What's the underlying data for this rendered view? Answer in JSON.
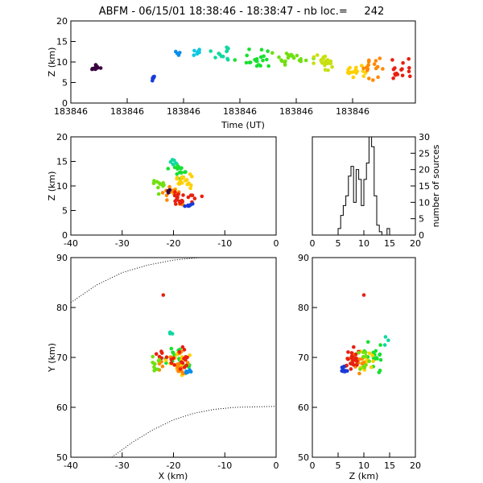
{
  "title": "ABFM - 06/15/01 18:38:46 - 18:38:47 - nb loc.=     242",
  "chart_data": [
    {
      "id": "time_height",
      "type": "scatter",
      "xlabel": "Time (UT)",
      "ylabel": "Z (km)",
      "x_tick_labels": [
        "183846",
        "183846",
        "183846",
        "183846",
        "183846",
        "183846"
      ],
      "ylim": [
        0,
        20
      ],
      "yticks": [
        0,
        5,
        10,
        15,
        20
      ],
      "x_unit": "fraction of time window (0-1)",
      "clusters": [
        {
          "x": 0.07,
          "y": 8.5,
          "color": "#3a0040",
          "n": 10,
          "sx": 0.02,
          "sy": 0.8
        },
        {
          "x": 0.24,
          "y": 6.0,
          "color": "#1a3ad8",
          "n": 8,
          "sx": 0.006,
          "sy": 0.5
        },
        {
          "x": 0.31,
          "y": 12.0,
          "color": "#0a8ee8",
          "n": 4,
          "sx": 0.01,
          "sy": 0.4
        },
        {
          "x": 0.37,
          "y": 12.5,
          "color": "#0fc8e0",
          "n": 8,
          "sx": 0.02,
          "sy": 0.8
        },
        {
          "x": 0.44,
          "y": 11.5,
          "color": "#10d8a0",
          "n": 12,
          "sx": 0.03,
          "sy": 2.0
        },
        {
          "x": 0.53,
          "y": 11.0,
          "color": "#18e030",
          "n": 20,
          "sx": 0.04,
          "sy": 1.6
        },
        {
          "x": 0.64,
          "y": 11.0,
          "color": "#70e010",
          "n": 20,
          "sx": 0.04,
          "sy": 1.5
        },
        {
          "x": 0.74,
          "y": 9.5,
          "color": "#c8e010",
          "n": 22,
          "sx": 0.03,
          "sy": 1.5
        },
        {
          "x": 0.82,
          "y": 8.0,
          "color": "#ffd000",
          "n": 18,
          "sx": 0.03,
          "sy": 1.2
        },
        {
          "x": 0.88,
          "y": 9.0,
          "color": "#ff8800",
          "n": 16,
          "sx": 0.03,
          "sy": 2.0
        },
        {
          "x": 0.95,
          "y": 8.5,
          "color": "#e82010",
          "n": 16,
          "sx": 0.025,
          "sy": 2.0
        }
      ]
    },
    {
      "id": "x_z",
      "type": "scatter",
      "xlim": [
        -40,
        0
      ],
      "xticks": [
        -40,
        -30,
        -20,
        -10,
        0
      ],
      "ylim": [
        0,
        20
      ],
      "yticks": [
        0,
        5,
        10,
        15,
        20
      ],
      "ylabel": "Z (km)",
      "clusters": [
        {
          "x": -19,
          "y": 13,
          "color": "#18e030",
          "n": 18,
          "sx": 1.5,
          "sy": 1.5
        },
        {
          "x": -18,
          "y": 11,
          "color": "#ffd000",
          "n": 18,
          "sx": 1.5,
          "sy": 1.5
        },
        {
          "x": -20,
          "y": 8.5,
          "color": "#ff8800",
          "n": 18,
          "sx": 2,
          "sy": 1.5
        },
        {
          "x": -18,
          "y": 7.5,
          "color": "#e82010",
          "n": 22,
          "sx": 2.5,
          "sy": 1.2
        },
        {
          "x": -23,
          "y": 10,
          "color": "#70e010",
          "n": 10,
          "sx": 1,
          "sy": 1.5
        },
        {
          "x": -17,
          "y": 6,
          "color": "#1a3ad8",
          "n": 8,
          "sx": 0.5,
          "sy": 0.4
        },
        {
          "x": -20,
          "y": 15,
          "color": "#10d8a0",
          "n": 5,
          "sx": 0.6,
          "sy": 0.8
        },
        {
          "x": -21,
          "y": 9,
          "color": "#3a0040",
          "n": 3,
          "sx": 0.3,
          "sy": 0.3
        }
      ]
    },
    {
      "id": "histogram",
      "type": "bar",
      "xlim": [
        0,
        20
      ],
      "xticks": [
        0,
        5,
        10,
        15,
        20
      ],
      "ylim": [
        0,
        30
      ],
      "yticks": [
        0,
        5,
        10,
        15,
        20,
        25,
        30
      ],
      "ylabel": "number of sources",
      "bin_width": 0.5,
      "bins_start": 5,
      "values": [
        2,
        6,
        9,
        12,
        18,
        21,
        10,
        20,
        17,
        9,
        17,
        22,
        30,
        27,
        12,
        3,
        1,
        0,
        0,
        2,
        0
      ]
    },
    {
      "id": "x_y",
      "type": "scatter",
      "xlim": [
        -40,
        0
      ],
      "xticks": [
        -40,
        -30,
        -20,
        -10,
        0
      ],
      "ylim": [
        50,
        90
      ],
      "yticks": [
        50,
        60,
        70,
        80,
        90
      ],
      "xlabel": "X (km)",
      "ylabel": "Y (km)",
      "clusters": [
        {
          "x": -19,
          "y": 70,
          "color": "#18e030",
          "n": 18,
          "sx": 2,
          "sy": 2
        },
        {
          "x": -19,
          "y": 69,
          "color": "#ffd000",
          "n": 18,
          "sx": 2,
          "sy": 2
        },
        {
          "x": -20,
          "y": 68.5,
          "color": "#ff8800",
          "n": 18,
          "sx": 2.5,
          "sy": 2
        },
        {
          "x": -19,
          "y": 69.5,
          "color": "#e82010",
          "n": 22,
          "sx": 3,
          "sy": 2
        },
        {
          "x": -23.5,
          "y": 69,
          "color": "#70e010",
          "n": 10,
          "sx": 0.8,
          "sy": 1.5
        },
        {
          "x": -17,
          "y": 67,
          "color": "#0a8ee8",
          "n": 5,
          "sx": 0.5,
          "sy": 0.5
        },
        {
          "x": -20.5,
          "y": 75,
          "color": "#10d8a0",
          "n": 3,
          "sx": 0.3,
          "sy": 1.5
        },
        {
          "x": -22,
          "y": 82.5,
          "color": "#e82010",
          "n": 1,
          "sx": 0,
          "sy": 0
        }
      ],
      "dotted_curves": [
        [
          [
            -40,
            81
          ],
          [
            -35,
            84.5
          ],
          [
            -30,
            87
          ],
          [
            -25,
            88.5
          ],
          [
            -20,
            89.5
          ],
          [
            -15,
            90
          ],
          [
            -10,
            90
          ]
        ],
        [
          [
            -32,
            50
          ],
          [
            -28,
            53
          ],
          [
            -24,
            55.5
          ],
          [
            -20,
            57.5
          ],
          [
            -16,
            58.8
          ],
          [
            -12,
            59.6
          ],
          [
            -8,
            60
          ],
          [
            0,
            60.2
          ]
        ]
      ]
    },
    {
      "id": "z_y",
      "type": "scatter",
      "xlim": [
        0,
        20
      ],
      "xticks": [
        0,
        5,
        10,
        15,
        20
      ],
      "ylim": [
        50,
        90
      ],
      "yticks": [
        50,
        60,
        70,
        80,
        90
      ],
      "xlabel": "Z (km)",
      "clusters": [
        {
          "x": 12,
          "y": 70,
          "color": "#18e030",
          "n": 18,
          "sx": 1.3,
          "sy": 2
        },
        {
          "x": 10.5,
          "y": 69,
          "color": "#ffd000",
          "n": 18,
          "sx": 1.3,
          "sy": 2
        },
        {
          "x": 8.5,
          "y": 69,
          "color": "#ff8800",
          "n": 18,
          "sx": 1.3,
          "sy": 2
        },
        {
          "x": 7.5,
          "y": 69.5,
          "color": "#e82010",
          "n": 22,
          "sx": 1.2,
          "sy": 2
        },
        {
          "x": 10,
          "y": 69,
          "color": "#70e010",
          "n": 10,
          "sx": 1.2,
          "sy": 1.5
        },
        {
          "x": 6,
          "y": 67.5,
          "color": "#1a3ad8",
          "n": 8,
          "sx": 0.6,
          "sy": 1
        },
        {
          "x": 14.5,
          "y": 74,
          "color": "#10d8a0",
          "n": 3,
          "sx": 1,
          "sy": 2
        },
        {
          "x": 10,
          "y": 82.5,
          "color": "#e82010",
          "n": 1,
          "sx": 0,
          "sy": 0
        }
      ]
    }
  ]
}
